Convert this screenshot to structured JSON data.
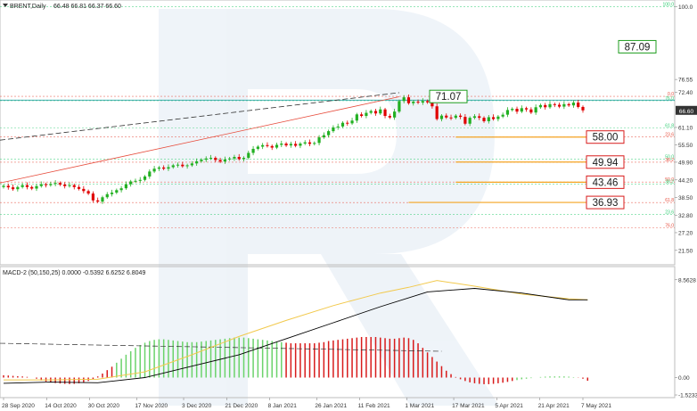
{
  "header": {
    "symbol_label": "BRENT,Daily",
    "ohlc": "66.48 66.81 66.37 66.60",
    "macd_label": "MACD-2 (50,150,25) 0.0000 -0.5392 6.6252 6.8049"
  },
  "colors": {
    "bull": "#22b022",
    "bear": "#e00000",
    "macd_hist_bull": "#6bd36b",
    "macd_hist_bear": "#d81b1b",
    "macd_line": "#000000",
    "signal_line": "#f2c94c",
    "level_orange": "#f4a321",
    "fib_red": "#e74c3c",
    "fib_green": "#2ecc71",
    "price_box_border": "#d81b1b",
    "target_box_border": "#1f9e1f",
    "current_price_bg": "#333333",
    "teal_line": "#29a3a3"
  },
  "chart_data": [
    {
      "type": "candlestick",
      "title": "BRENT,Daily",
      "y_ticks": [
        "100.0",
        "76.55",
        "72.40",
        "66.60",
        "61.10",
        "55.50",
        "49.90",
        "44.20",
        "38.50",
        "32.80",
        "27.20",
        "21.50"
      ],
      "x_ticks": [
        "28 Sep 2020",
        "14 Oct 2020",
        "30 Oct 2020",
        "17 Nov 2020",
        "3 Dec 2020",
        "21 Dec 2020",
        "8 Jan 2021",
        "26 Jan 2021",
        "11 Feb 2021",
        "1 Mar 2021",
        "17 Mar 2021",
        "5 Apr 2021",
        "21 Apr 2021",
        "7 May 2021"
      ],
      "ylim": [
        18.0,
        101.0
      ],
      "current_price": "66.60",
      "closes": [
        42.3,
        41.8,
        41.2,
        41.9,
        42.5,
        41.9,
        41.4,
        42.2,
        42.8,
        42.5,
        42.9,
        43.2,
        42.7,
        42.2,
        42.5,
        41.9,
        41.3,
        40.6,
        39.8,
        37.6,
        37.2,
        38.6,
        39.6,
        40.1,
        40.9,
        41.5,
        42.8,
        43.7,
        43.9,
        44.2,
        45.3,
        46.9,
        47.8,
        48.2,
        47.8,
        48.3,
        48.9,
        49.1,
        48.6,
        48.9,
        49.5,
        50.2,
        50.7,
        51.1,
        51.3,
        50.6,
        50.1,
        50.8,
        51.1,
        51.6,
        50.9,
        51.3,
        52.9,
        54.2,
        54.9,
        55.4,
        55.1,
        54.6,
        55.5,
        55.9,
        55.3,
        55.8,
        55.2,
        55.9,
        56.3,
        55.8,
        56.1,
        57.9,
        58.6,
        59.9,
        61.1,
        61.4,
        62.6,
        62.4,
        63.3,
        65.3,
        64.8,
        65.8,
        66.4,
        65.6,
        66.9,
        64.8,
        64.3,
        66.2,
        69.6,
        70.8,
        68.9,
        69.4,
        69.1,
        69.6,
        69.2,
        67.9,
        63.8,
        64.9,
        64.3,
        64.2,
        64.9,
        64.5,
        62.3,
        64.2,
        64.7,
        64.2,
        63.1,
        64.4,
        63.8,
        64.6,
        65.2,
        66.7,
        67.1,
        66.2,
        67.3,
        66.9,
        65.9,
        67.6,
        68.3,
        67.6,
        68.6,
        68.4,
        67.8,
        68.6,
        68.2,
        69.1,
        67.7,
        66.6
      ],
      "levels": [
        {
          "label": "87.09",
          "value": 87.09,
          "style": "target"
        },
        {
          "label": "71.07",
          "value": 71.07,
          "style": "target"
        },
        {
          "label": "58.00",
          "value": 58.0,
          "style": "support"
        },
        {
          "label": "49.94",
          "value": 49.94,
          "style": "support"
        },
        {
          "label": "43.46",
          "value": 43.46,
          "style": "support"
        },
        {
          "label": "36.93",
          "value": 36.93,
          "style": "support"
        }
      ],
      "fib_labels": [
        {
          "label": "100.0",
          "value": 100.0,
          "color": "green"
        },
        {
          "label": "0.0",
          "value": 71.1,
          "color": "red"
        },
        {
          "label": "76.0",
          "value": 69.7,
          "color": "green"
        },
        {
          "label": "61.8",
          "value": 60.9,
          "color": "green"
        },
        {
          "label": "23.6",
          "value": 58.0,
          "color": "red"
        },
        {
          "label": "50.0",
          "value": 50.9,
          "color": "green"
        },
        {
          "label": "38.2",
          "value": 49.9,
          "color": "red"
        },
        {
          "label": "50.0",
          "value": 43.5,
          "color": "red"
        },
        {
          "label": "38.2",
          "value": 42.8,
          "color": "green"
        },
        {
          "label": "61.8",
          "value": 36.9,
          "color": "red"
        },
        {
          "label": "23.6",
          "value": 33.1,
          "color": "green"
        },
        {
          "label": "76.0",
          "value": 28.7,
          "color": "red"
        }
      ]
    },
    {
      "type": "bar",
      "title": "MACD-2 (50,150,25)",
      "y_ticks": [
        "8.5628",
        "0.00",
        "-1.5233"
      ],
      "ylim": [
        -1.6,
        8.7
      ],
      "histogram": [
        0.2,
        0.18,
        0.15,
        0.12,
        0.1,
        0.06,
        0.0,
        -0.1,
        -0.25,
        -0.35,
        -0.42,
        -0.48,
        -0.52,
        -0.55,
        -0.57,
        -0.55,
        -0.5,
        -0.42,
        -0.3,
        -0.15,
        0.1,
        0.35,
        0.65,
        0.95,
        1.3,
        1.65,
        2.0,
        2.3,
        2.6,
        2.85,
        3.05,
        3.2,
        3.3,
        3.35,
        3.35,
        3.3,
        3.25,
        3.2,
        3.15,
        3.1,
        3.1,
        3.1,
        3.15,
        3.2,
        3.25,
        3.3,
        3.35,
        3.4,
        3.45,
        3.5,
        3.5,
        3.5,
        3.45,
        3.4,
        3.35,
        3.3,
        3.25,
        3.2,
        3.15,
        3.1,
        3.05,
        3.0,
        3.0,
        3.0,
        3.0,
        3.0,
        3.0,
        3.05,
        3.1,
        3.2,
        3.25,
        3.3,
        3.35,
        3.4,
        3.45,
        3.5,
        3.55,
        3.55,
        3.55,
        3.55,
        3.5,
        3.45,
        3.4,
        3.4,
        3.45,
        3.5,
        3.45,
        3.3,
        3.0,
        2.6,
        2.2,
        1.8,
        1.4,
        1.0,
        0.6,
        0.3,
        0.05,
        -0.15,
        -0.3,
        -0.42,
        -0.5,
        -0.55,
        -0.58,
        -0.58,
        -0.55,
        -0.5,
        -0.45,
        -0.38,
        -0.3,
        -0.22,
        -0.15,
        -0.1,
        -0.05,
        0.0,
        0.05,
        0.08,
        0.1,
        0.1,
        0.1,
        0.1,
        0.08,
        0.04,
        -0.02,
        -0.1,
        -0.28
      ],
      "bear_bar_indices": [
        0,
        1,
        2,
        3,
        4,
        5,
        6,
        7,
        8,
        9,
        10,
        11,
        12,
        13,
        14,
        15,
        16,
        17,
        18,
        19,
        20,
        21,
        22,
        23,
        60,
        61,
        62,
        63,
        64,
        65,
        66,
        67,
        68,
        69,
        70,
        71,
        72,
        73,
        74,
        75,
        76,
        77,
        78,
        79,
        80,
        81,
        82,
        83,
        84,
        85,
        86,
        87,
        88,
        89,
        90,
        91,
        92,
        93,
        94,
        95,
        96,
        97,
        98,
        99,
        100,
        101,
        102,
        103,
        104,
        105,
        106,
        107,
        108,
        122,
        123,
        124
      ],
      "signal_points": [
        [
          0,
          -0.2
        ],
        [
          10,
          -0.2
        ],
        [
          20,
          -0.15
        ],
        [
          30,
          0.5
        ],
        [
          40,
          2.0
        ],
        [
          50,
          3.6
        ],
        [
          60,
          5.0
        ],
        [
          70,
          6.3
        ],
        [
          80,
          7.4
        ],
        [
          86,
          7.9
        ],
        [
          92,
          8.5
        ],
        [
          100,
          8.0
        ],
        [
          110,
          7.3
        ],
        [
          120,
          6.9
        ],
        [
          124,
          6.8
        ]
      ],
      "macd_points": [
        [
          0,
          -0.5
        ],
        [
          10,
          -0.4
        ],
        [
          20,
          -0.45
        ],
        [
          30,
          0.0
        ],
        [
          40,
          1.0
        ],
        [
          50,
          2.0
        ],
        [
          60,
          3.4
        ],
        [
          70,
          4.8
        ],
        [
          80,
          6.2
        ],
        [
          90,
          7.5
        ],
        [
          100,
          7.8
        ],
        [
          110,
          7.4
        ],
        [
          120,
          6.8
        ],
        [
          124,
          6.8
        ]
      ]
    }
  ]
}
